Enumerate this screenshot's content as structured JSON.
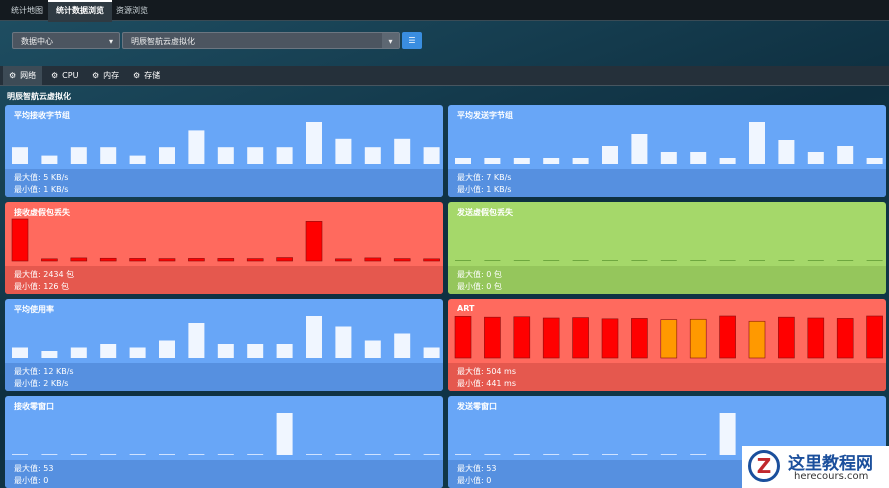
{
  "tabs": [
    "统计地图",
    "统计数据浏览",
    "资源浏览"
  ],
  "active_tab": 1,
  "selects": [
    "数据中心",
    "明辰智航云虚拟化"
  ],
  "subtabs": [
    "网络",
    "CPU",
    "内存",
    "存储"
  ],
  "active_subtab": 0,
  "section_title": "明辰智航云虚拟化",
  "panels": [
    {
      "title": "平均接收字节组",
      "theme": "blue",
      "bar_color": "#ffffff",
      "max_label": "最大值: 5 KB/s",
      "min_label": "最小值: 1 KB/s",
      "values": [
        2,
        1,
        2,
        2,
        1,
        2,
        4,
        2,
        2,
        2,
        5,
        3,
        2,
        3,
        2
      ]
    },
    {
      "title": "平均发送字节组",
      "theme": "blue",
      "bar_color": "#ffffff",
      "max_label": "最大值: 7 KB/s",
      "min_label": "最小值: 1 KB/s",
      "values": [
        1,
        1,
        1,
        1,
        1,
        3,
        5,
        2,
        2,
        1,
        7,
        4,
        2,
        3,
        1
      ]
    },
    {
      "title": "接收虚假包丢失",
      "theme": "red",
      "bar_color": "#ff0000",
      "max_label": "最大值: 2434 包",
      "min_label": "最小值: 126 包",
      "values": [
        2434,
        126,
        180,
        160,
        150,
        140,
        150,
        150,
        140,
        200,
        2300,
        126,
        180,
        140,
        126
      ]
    },
    {
      "title": "发送虚假包丢失",
      "theme": "green",
      "bar_color": "#7fbf4a",
      "max_label": "最大值: 0 包",
      "min_label": "最小值: 0 包",
      "values": [
        0,
        0,
        0,
        0,
        0,
        0,
        0,
        0,
        0,
        0,
        0,
        0,
        0,
        0,
        0
      ]
    },
    {
      "title": "平均使用率",
      "theme": "blue",
      "bar_color": "#ffffff",
      "max_label": "最大值: 12 KB/s",
      "min_label": "最小值: 2 KB/s",
      "values": [
        3,
        2,
        3,
        4,
        3,
        5,
        10,
        4,
        4,
        4,
        12,
        9,
        5,
        7,
        3
      ]
    },
    {
      "title": "ART",
      "theme": "red",
      "bar_color": "#ff0000",
      "bar_colors": [
        "#ff0000",
        "#ff0000",
        "#ff0000",
        "#ff0000",
        "#ff0000",
        "#ff0000",
        "#ff0000",
        "#ff9900",
        "#ff9900",
        "#ff0000",
        "#ff9900",
        "#ff0000",
        "#ff0000",
        "#ff0000",
        "#ff0000"
      ],
      "max_label": "最大值: 504 ms",
      "min_label": "最小值: 441 ms",
      "values": [
        500,
        490,
        495,
        480,
        485,
        470,
        475,
        460,
        465,
        504,
        441,
        490,
        480,
        475,
        504
      ]
    },
    {
      "title": "接收零窗口",
      "theme": "blue",
      "bar_color": "#ffffff",
      "max_label": "最大值: 53",
      "min_label": "最小值: 0",
      "values": [
        0,
        0,
        0,
        0,
        0,
        0,
        0,
        0,
        0,
        53,
        0,
        0,
        0,
        0,
        0
      ]
    },
    {
      "title": "发送零窗口",
      "theme": "blue",
      "bar_color": "#ffffff",
      "max_label": "最大值: 53",
      "min_label": "最小值: 0",
      "values": [
        0,
        0,
        0,
        0,
        0,
        0,
        0,
        0,
        0,
        53,
        0,
        0,
        0,
        0,
        0
      ]
    }
  ],
  "watermark": {
    "title": "这里教程网",
    "url": "herecours.com"
  }
}
